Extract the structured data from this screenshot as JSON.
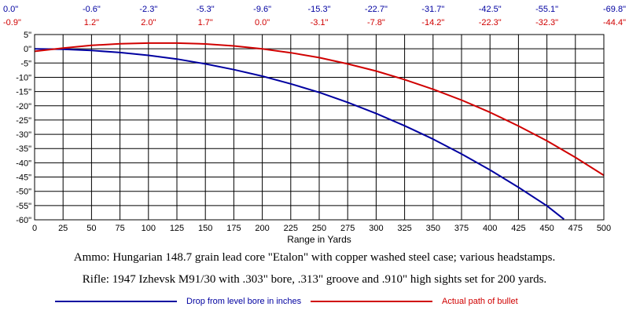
{
  "chart_data": {
    "type": "line",
    "xlabel": "Range in Yards",
    "ylabel": "",
    "xlim": [
      0,
      500
    ],
    "ylim": [
      -60,
      5
    ],
    "grid": true,
    "x_ticks": [
      0,
      25,
      50,
      75,
      100,
      125,
      150,
      175,
      200,
      225,
      250,
      275,
      300,
      325,
      350,
      375,
      400,
      425,
      450,
      475,
      500
    ],
    "y_ticks": [
      5,
      0,
      -5,
      -10,
      -15,
      -20,
      -25,
      -30,
      -35,
      -40,
      -45,
      -50,
      -55,
      -60
    ],
    "x_tick_labels": [
      "0",
      "25",
      "50",
      "75",
      "100",
      "125",
      "150",
      "175",
      "200",
      "225",
      "250",
      "275",
      "300",
      "325",
      "350",
      "375",
      "400",
      "425",
      "450",
      "475",
      "500"
    ],
    "y_tick_labels": [
      "5\"",
      "0\"",
      "-5\"",
      "-10\"",
      "-15\"",
      "-20\"",
      "-25\"",
      "-30\"",
      "-35\"",
      "-40\"",
      "-45\"",
      "-50\"",
      "-55\"",
      "-60\""
    ],
    "top_labels": {
      "x": [
        0,
        50,
        100,
        150,
        200,
        250,
        300,
        350,
        400,
        450,
        500
      ],
      "drop": [
        "0.0\"",
        "-0.6\"",
        "-2.3\"",
        "-5.3\"",
        "-9.6\"",
        "-15.3\"",
        "-22.7\"",
        "-31.7\"",
        "-42.5\"",
        "-55.1\"",
        "-69.8\""
      ],
      "path": [
        "-0.9\"",
        "1.2\"",
        "2.0\"",
        "1.7\"",
        "0.0\"",
        "-3.1\"",
        "-7.8\"",
        "-14.2\"",
        "-22.3\"",
        "-32.3\"",
        "-44.4\""
      ]
    },
    "series": [
      {
        "name": "Drop from level bore in inches",
        "color": "#0000a0",
        "x": [
          0,
          25,
          50,
          75,
          100,
          125,
          150,
          175,
          200,
          225,
          250,
          275,
          300,
          325,
          350,
          375,
          400,
          425,
          450,
          465
        ],
        "values": [
          0.0,
          -0.15,
          -0.6,
          -1.3,
          -2.3,
          -3.6,
          -5.3,
          -7.3,
          -9.6,
          -12.3,
          -15.3,
          -18.8,
          -22.7,
          -27.0,
          -31.7,
          -36.9,
          -42.5,
          -48.6,
          -55.1,
          -59.8
        ]
      },
      {
        "name": "Actual path of bullet",
        "color": "#d00000",
        "x": [
          0,
          25,
          50,
          75,
          100,
          125,
          150,
          175,
          200,
          225,
          250,
          275,
          300,
          325,
          350,
          375,
          400,
          425,
          450,
          475,
          500
        ],
        "values": [
          -0.9,
          0.25,
          1.2,
          1.75,
          2.0,
          2.0,
          1.7,
          1.0,
          0.0,
          -1.4,
          -3.1,
          -5.3,
          -7.8,
          -10.8,
          -14.2,
          -18.0,
          -22.3,
          -27.1,
          -32.3,
          -38.1,
          -44.4
        ]
      }
    ]
  },
  "captions": {
    "line1": "Ammo:  Hungarian 148.7 grain lead core \"Etalon\" with copper washed steel case; various headstamps.",
    "line2": "Rifle:  1947 Izhevsk M91/30 with .303\" bore, .313\" groove and .910\" high sights set for 200 yards."
  },
  "legend": {
    "items": [
      {
        "label": "Drop from level bore in inches",
        "color": "#0000a0"
      },
      {
        "label": "Actual path of bullet",
        "color": "#d00000"
      }
    ]
  }
}
